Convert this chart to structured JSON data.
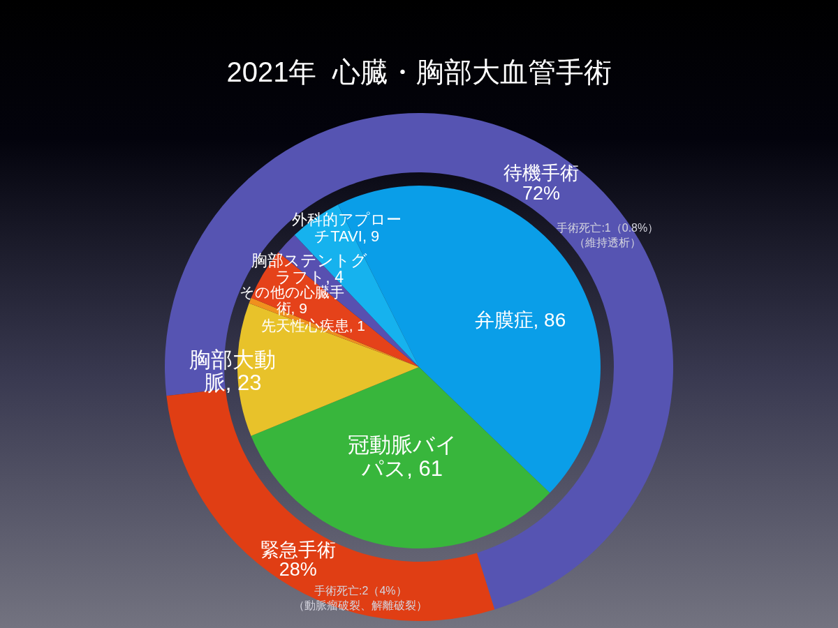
{
  "chart_data": [
    {
      "type": "donut",
      "title": "2021年  心臓・胸部大血管手術",
      "categories": [
        "待機手術",
        "緊急手術"
      ],
      "values": [
        72,
        28
      ],
      "colors": [
        "#5654b2",
        "#e03e14"
      ],
      "value_labels": [
        "72%",
        "28%"
      ],
      "annotations": [
        "手術死亡:1（0.8%）（維持透析）",
        "手術死亡:2（4%）（動脈瘤破裂、解離破裂）"
      ]
    },
    {
      "type": "pie",
      "categories": [
        "弁膜症",
        "冠動脈バイパス",
        "胸部大動脈",
        "先天性心疾患",
        "その他の心臓手術",
        "胸部ステントグラフト",
        "外科的アプローチTAVI"
      ],
      "values": [
        86,
        61,
        23,
        1,
        9,
        4,
        9
      ],
      "colors": [
        "#0a9ee8",
        "#38b63c",
        "#e8c22a",
        "#f0901e",
        "#e5421a",
        "#5850b0",
        "#16b2ee"
      ],
      "value_labels": [
        ", 86",
        ", 61",
        ", 23",
        ", 1",
        ", 9",
        ", 4",
        ", 9"
      ]
    }
  ]
}
